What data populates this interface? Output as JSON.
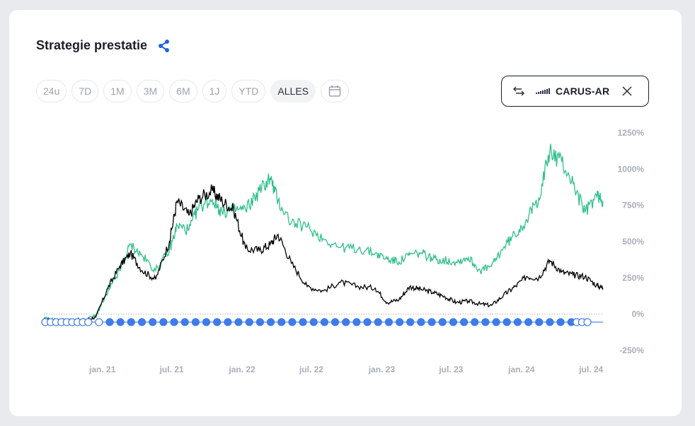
{
  "header": {
    "title": "Strategie prestatie",
    "share_icon": "share-icon"
  },
  "time_ranges": [
    "24u",
    "7D",
    "1M",
    "3M",
    "6M",
    "1J",
    "YTD",
    "ALLES"
  ],
  "active_range": "ALLES",
  "calendar_icon": "calendar-icon",
  "compare": {
    "label": "CARUS-AR",
    "swap_icon": "swap-arrows-icon",
    "close_icon": "close-icon"
  },
  "colors": {
    "strategy": "#000000",
    "benchmark": "#2fc08a",
    "trades": "#3f7be9",
    "zero_line": "#b7bcc6"
  },
  "chart_data": {
    "type": "line",
    "x_ticks": [
      "jan. 21",
      "jul. 21",
      "jan. 22",
      "jul. 22",
      "jan. 23",
      "jul. 23",
      "jan. 24",
      "jul. 24"
    ],
    "x_range": [
      "2020-08",
      "2024-08"
    ],
    "y_ticks": [
      "1250%",
      "1000%",
      "750%",
      "500%",
      "250%",
      "0%",
      "-250%"
    ],
    "ylim": [
      -250,
      1250
    ],
    "grid": false,
    "series": [
      {
        "role": "strategy",
        "x": [
          "2020-08-01",
          "2020-09-01",
          "2020-10-01",
          "2020-11-15",
          "2020-12-15",
          "2021-01-15",
          "2021-02-15",
          "2021-03-15",
          "2021-04-15",
          "2021-05-20",
          "2021-06-25",
          "2021-07-15",
          "2021-08-15",
          "2021-09-10",
          "2021-10-15",
          "2021-11-10",
          "2021-12-10",
          "2022-01-10",
          "2022-02-15",
          "2022-03-15",
          "2022-04-05",
          "2022-05-10",
          "2022-06-20",
          "2022-08-01",
          "2022-09-15",
          "2022-11-01",
          "2022-12-15",
          "2023-01-15",
          "2023-02-15",
          "2023-03-15",
          "2023-04-15",
          "2023-05-15",
          "2023-06-15",
          "2023-07-15",
          "2023-08-15",
          "2023-09-15",
          "2023-10-15",
          "2023-11-15",
          "2023-12-15",
          "2024-01-15",
          "2024-02-15",
          "2024-03-15",
          "2024-04-15",
          "2024-05-15",
          "2024-06-15",
          "2024-07-15",
          "2024-08-01"
        ],
        "values": [
          -40,
          -50,
          -45,
          -40,
          -20,
          180,
          330,
          420,
          300,
          240,
          500,
          780,
          680,
          800,
          850,
          780,
          720,
          450,
          440,
          480,
          550,
          350,
          190,
          160,
          220,
          190,
          180,
          80,
          100,
          190,
          170,
          150,
          120,
          80,
          90,
          70,
          60,
          130,
          190,
          260,
          250,
          370,
          290,
          270,
          260,
          200,
          180
        ]
      },
      {
        "role": "benchmark",
        "x": [
          "2020-08-01",
          "2020-09-01",
          "2020-10-01",
          "2020-11-15",
          "2020-12-15",
          "2021-01-15",
          "2021-02-15",
          "2021-03-15",
          "2021-04-15",
          "2021-05-20",
          "2021-06-25",
          "2021-07-15",
          "2021-08-15",
          "2021-09-10",
          "2021-10-15",
          "2021-11-10",
          "2021-12-10",
          "2022-01-10",
          "2022-02-15",
          "2022-03-15",
          "2022-04-05",
          "2022-05-10",
          "2022-06-20",
          "2022-08-01",
          "2022-09-15",
          "2022-11-01",
          "2022-12-15",
          "2023-01-15",
          "2023-02-15",
          "2023-03-15",
          "2023-04-15",
          "2023-05-15",
          "2023-06-15",
          "2023-07-15",
          "2023-08-15",
          "2023-09-15",
          "2023-10-15",
          "2023-11-15",
          "2023-12-15",
          "2024-01-15",
          "2024-02-15",
          "2024-03-15",
          "2024-04-15",
          "2024-05-15",
          "2024-06-15",
          "2024-07-15",
          "2024-08-01"
        ],
        "values": [
          -30,
          -45,
          -50,
          -40,
          -10,
          150,
          300,
          480,
          400,
          300,
          440,
          610,
          580,
          740,
          790,
          700,
          720,
          720,
          850,
          940,
          780,
          630,
          600,
          520,
          460,
          450,
          420,
          380,
          360,
          410,
          420,
          380,
          370,
          360,
          390,
          300,
          330,
          460,
          550,
          650,
          800,
          1120,
          1050,
          900,
          700,
          820,
          780
        ]
      }
    ],
    "trade_markers": {
      "value": -55,
      "filled": [
        18,
        21,
        22,
        24,
        25,
        26,
        27,
        28,
        29,
        30,
        31,
        32,
        33,
        34,
        35,
        36,
        37,
        38,
        39,
        40,
        41,
        42,
        43,
        44,
        45,
        46,
        47,
        48,
        49,
        50,
        51,
        52,
        53,
        54,
        55,
        56,
        57,
        58,
        59,
        60,
        61,
        62,
        63,
        64,
        65,
        66,
        67,
        68,
        69,
        70,
        71,
        72,
        73,
        74,
        75,
        76,
        77,
        78,
        79,
        80,
        81,
        82,
        83,
        84,
        85,
        86,
        87,
        88,
        89,
        90,
        91,
        92,
        93,
        94,
        95,
        96,
        97,
        98,
        99,
        100,
        101,
        102,
        103,
        104,
        105,
        106,
        107,
        108,
        109,
        110,
        111,
        112,
        113,
        114,
        115,
        116,
        117,
        118,
        119,
        120,
        121,
        122,
        123,
        124,
        125,
        126,
        127,
        128,
        129,
        130,
        131,
        132,
        133,
        134,
        135,
        136,
        137,
        138,
        139,
        140,
        141,
        142,
        143,
        144,
        145,
        146,
        147,
        148,
        149,
        150,
        151,
        152,
        153,
        154,
        155,
        156,
        157,
        158,
        159,
        160,
        161,
        162,
        163,
        164,
        165,
        166,
        167,
        168,
        169,
        170,
        171,
        172,
        173,
        174,
        175,
        176,
        177,
        178,
        179,
        180,
        181,
        182,
        183,
        184,
        185,
        186,
        187,
        188,
        189,
        190,
        191,
        192,
        193,
        194,
        195,
        196,
        197
      ],
      "open": [
        0,
        1,
        2,
        3,
        4,
        5,
        6,
        7,
        8,
        9,
        10,
        11,
        12,
        13,
        14,
        15,
        16,
        17,
        19,
        20,
        23,
        198,
        199,
        200,
        201,
        202
      ],
      "count": 203,
      "start": "2020-08-01",
      "end": "2024-08-01"
    }
  }
}
